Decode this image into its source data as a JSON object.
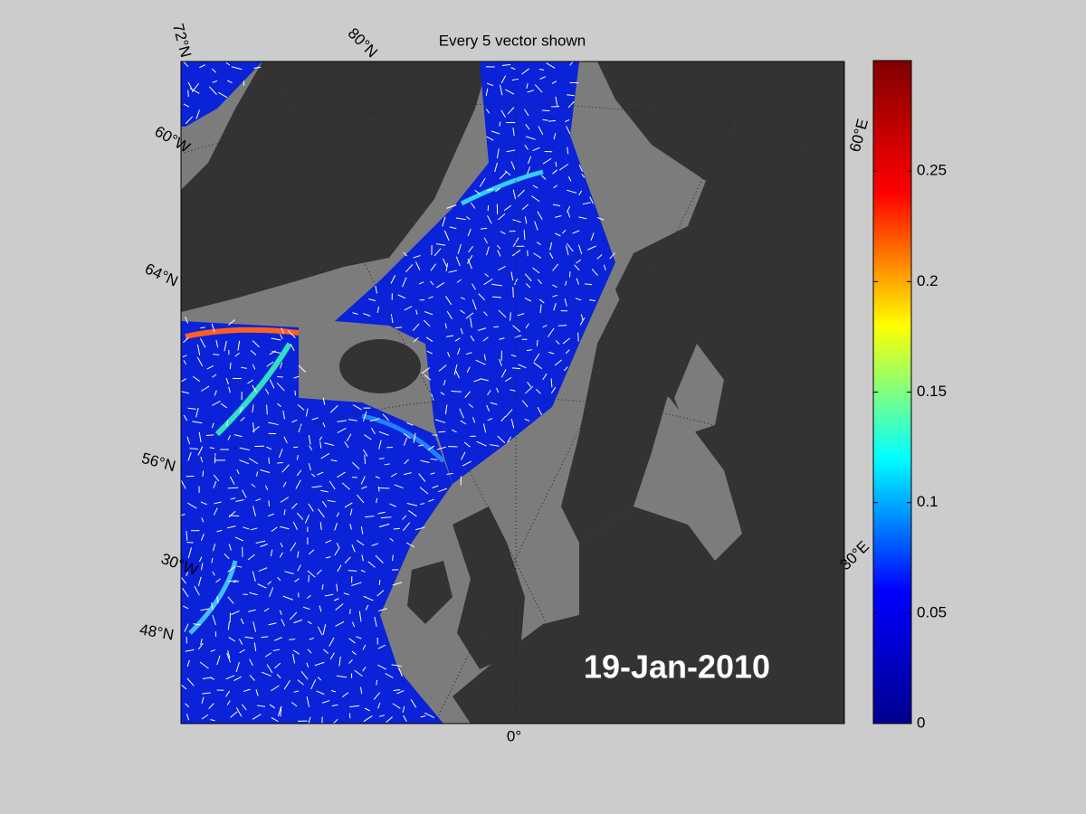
{
  "title": "Every 5 vector shown",
  "date_label": "19-Jan-2010",
  "graticule_labels": [
    "72°N",
    "80°N",
    "60°W",
    "64°N",
    "56°N",
    "30°W",
    "48°N",
    "0°",
    "30°E",
    "60°E"
  ],
  "colorbar": {
    "colormap": "jet",
    "clim": [
      0,
      0.3
    ],
    "ticks": [
      0,
      0.05,
      0.1,
      0.15,
      0.2,
      0.25
    ]
  }
}
